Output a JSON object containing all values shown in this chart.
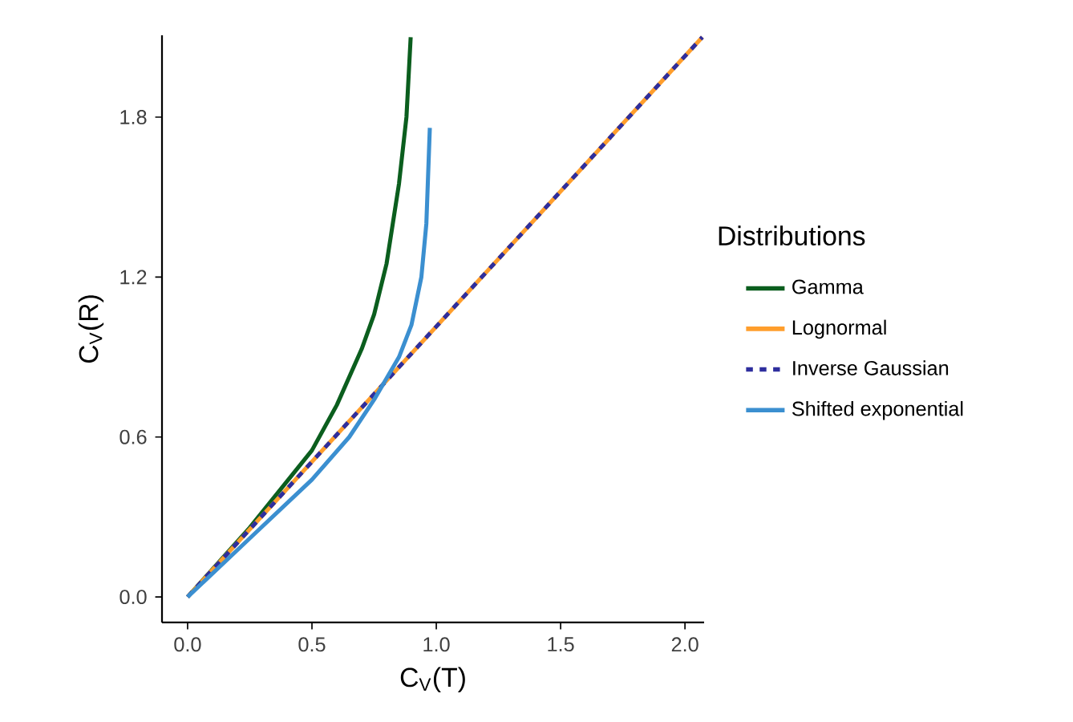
{
  "chart_data": {
    "type": "line",
    "xlabel": "C$_{V}$(T)",
    "ylabel": "C$_{V}$(R)",
    "legend_title": "Distributions",
    "legend": "right",
    "grid": false,
    "xlim": [
      -0.103,
      2.077
    ],
    "ylim": [
      -0.096,
      2.107
    ],
    "xticks": [
      {
        "value": 0,
        "label": "0.0"
      },
      {
        "value": 0.5,
        "label": "0.5"
      },
      {
        "value": 1,
        "label": "1.0"
      },
      {
        "value": 1.5,
        "label": "1.5"
      },
      {
        "value": 2,
        "label": "2.0"
      }
    ],
    "yticks": [
      {
        "value": 0,
        "label": "0.0"
      },
      {
        "value": 0.6,
        "label": "0.6"
      },
      {
        "value": 1.2,
        "label": "1.2"
      },
      {
        "value": 1.8,
        "label": "1.8"
      }
    ],
    "series": [
      {
        "name": "Gamma",
        "color": "#0b5e1e",
        "line_style": "solid",
        "x": [
          0,
          0.25,
          0.5,
          0.6,
          0.7,
          0.75,
          0.8,
          0.85,
          0.88,
          0.897
        ],
        "values": [
          0,
          0.26,
          0.55,
          0.72,
          0.93,
          1.06,
          1.25,
          1.55,
          1.8,
          2.1
        ]
      },
      {
        "name": "Lognormal",
        "color": "#ff9e2c",
        "line_style": "solid",
        "x": [
          0,
          2.07
        ],
        "values": [
          0,
          2.1
        ]
      },
      {
        "name": "Inverse Gaussian",
        "color": "#2e2e9e",
        "line_style": "dashed",
        "x": [
          0,
          2.07
        ],
        "values": [
          0,
          2.1
        ]
      },
      {
        "name": "Shifted exponential",
        "color": "#3b8fd0",
        "line_style": "solid",
        "x": [
          0,
          0.25,
          0.5,
          0.65,
          0.75,
          0.85,
          0.9,
          0.94,
          0.96,
          0.974
        ],
        "values": [
          0,
          0.22,
          0.44,
          0.6,
          0.74,
          0.9,
          1.02,
          1.2,
          1.4,
          1.76
        ]
      }
    ]
  }
}
